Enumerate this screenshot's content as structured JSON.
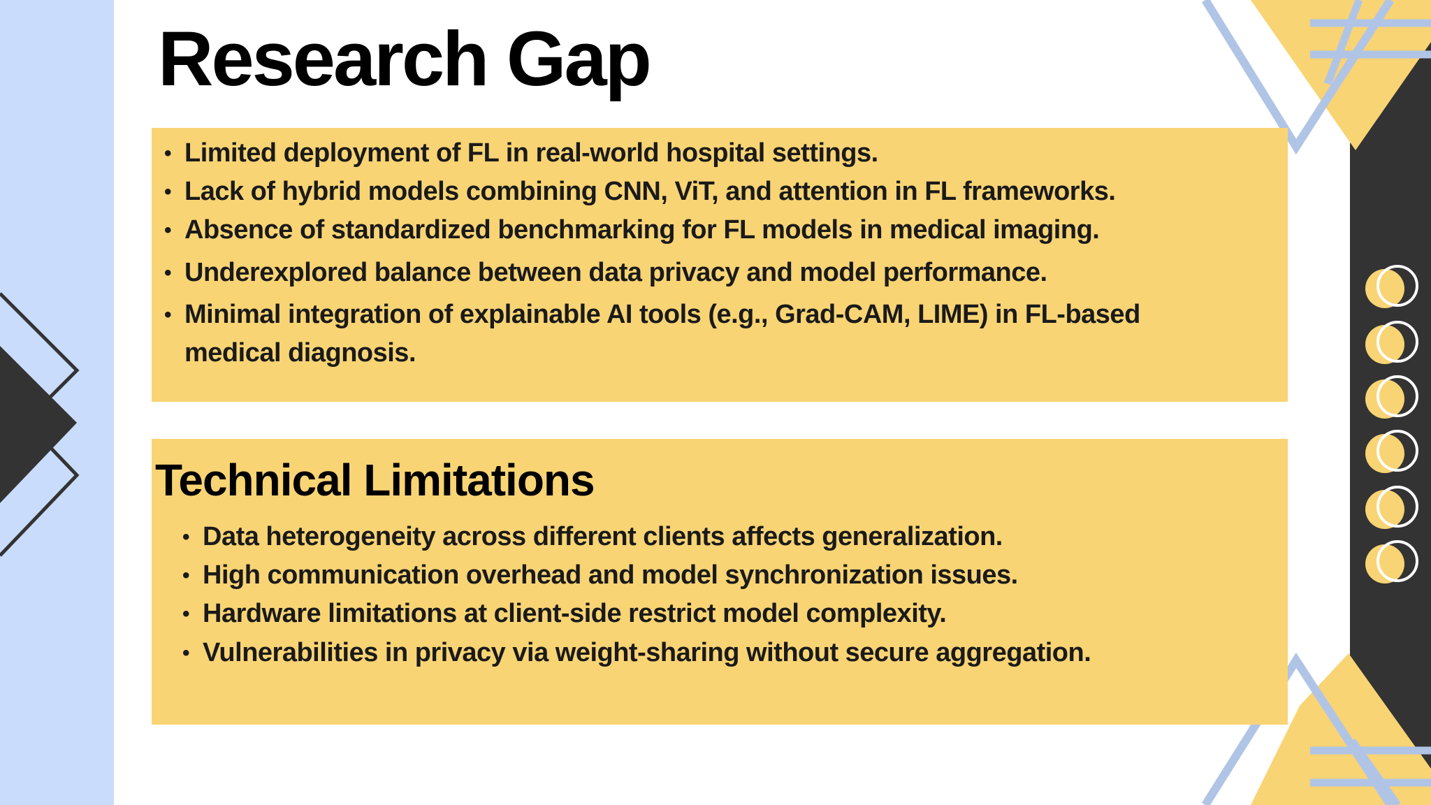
{
  "slide": {
    "title": "Research Gap",
    "gaps": [
      "Limited deployment of FL in real-world hospital settings.",
      "Lack of hybrid models combining CNN, ViT, and attention in FL frameworks.",
      "Absence of standardized benchmarking for FL models in medical imaging.",
      "Underexplored balance between data privacy and model performance.",
      "Minimal integration of explainable AI tools (e.g., Grad-CAM, LIME) in FL-based",
      "medical diagnosis."
    ],
    "limitations_title": "Technical Limitations",
    "limitations": [
      "Data heterogeneity across different clients affects generalization.",
      "High communication overhead and model synchronization issues.",
      "Hardware limitations at client-side restrict model complexity.",
      "Vulnerabilities in privacy via weight-sharing without secure aggregation."
    ],
    "bullet": "•"
  },
  "colors": {
    "accent_yellow": "#f9d474",
    "band_blue": "#c9dcfb",
    "line_blue": "#b0c4e6",
    "dark": "#333333",
    "text": "#1a1a1a"
  }
}
